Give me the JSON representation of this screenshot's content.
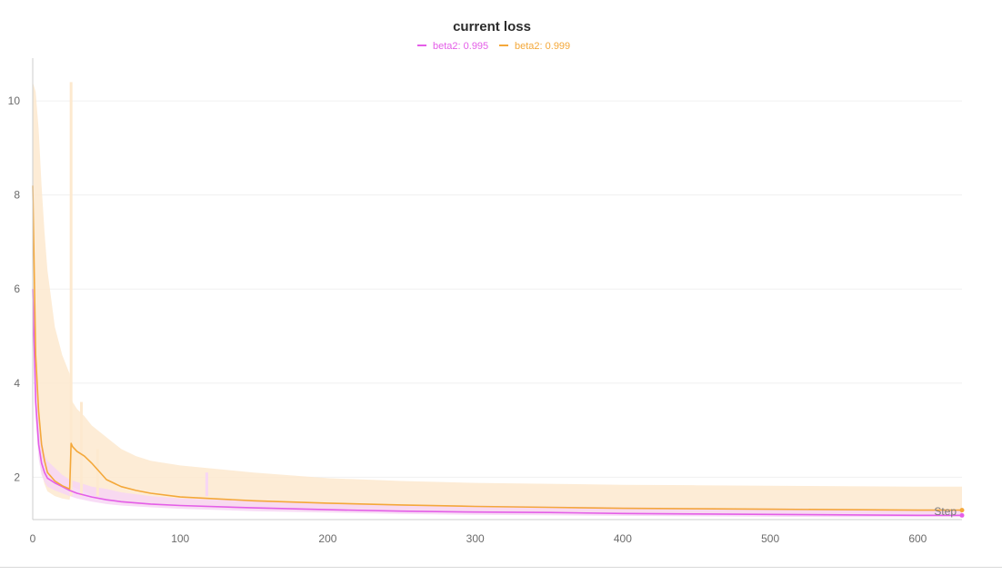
{
  "chart_data": {
    "type": "line",
    "title": "current loss",
    "xlabel": "Step",
    "ylabel": "",
    "xlim": [
      0,
      630
    ],
    "ylim": [
      1.1,
      10.6
    ],
    "x_ticks": [
      0,
      100,
      200,
      300,
      400,
      500,
      600
    ],
    "y_ticks": [
      2,
      4,
      6,
      8,
      10
    ],
    "grid": true,
    "legend_position": "top-center",
    "series": [
      {
        "name": "beta2: 0.995",
        "color": "#e45ee8",
        "band_color": "#f7d6f5",
        "x": [
          0,
          2,
          4,
          6,
          8,
          10,
          15,
          20,
          25,
          30,
          40,
          50,
          60,
          80,
          100,
          150,
          200,
          250,
          300,
          350,
          400,
          450,
          500,
          550,
          600,
          630
        ],
        "mean": [
          6.0,
          3.6,
          2.7,
          2.3,
          2.1,
          1.98,
          1.88,
          1.8,
          1.72,
          1.66,
          1.58,
          1.52,
          1.48,
          1.43,
          1.4,
          1.35,
          1.31,
          1.28,
          1.26,
          1.25,
          1.23,
          1.22,
          1.21,
          1.2,
          1.19,
          1.19
        ],
        "upper": [
          6.5,
          4.2,
          3.3,
          2.8,
          2.5,
          2.35,
          2.2,
          2.05,
          1.95,
          1.9,
          1.8,
          1.75,
          1.68,
          1.6,
          1.55,
          1.5,
          1.46,
          1.42,
          1.4,
          1.38,
          1.36,
          1.35,
          1.34,
          1.33,
          1.32,
          1.32
        ],
        "lower": [
          5.5,
          3.2,
          2.4,
          2.05,
          1.9,
          1.8,
          1.72,
          1.66,
          1.6,
          1.55,
          1.48,
          1.43,
          1.4,
          1.36,
          1.33,
          1.28,
          1.25,
          1.22,
          1.2,
          1.19,
          1.18,
          1.17,
          1.16,
          1.15,
          1.15,
          1.15
        ]
      },
      {
        "name": "beta2: 0.999",
        "color": "#f4a83a",
        "band_color": "#fde9cf",
        "x": [
          0,
          2,
          4,
          6,
          8,
          10,
          15,
          20,
          25,
          26,
          27,
          30,
          35,
          40,
          50,
          60,
          70,
          80,
          100,
          150,
          200,
          250,
          300,
          350,
          400,
          450,
          500,
          550,
          600,
          630
        ],
        "mean": [
          8.2,
          4.6,
          3.4,
          2.7,
          2.35,
          2.1,
          1.92,
          1.82,
          1.75,
          2.72,
          2.65,
          2.55,
          2.45,
          2.3,
          1.95,
          1.8,
          1.72,
          1.66,
          1.58,
          1.5,
          1.45,
          1.41,
          1.38,
          1.36,
          1.34,
          1.33,
          1.32,
          1.31,
          1.3,
          1.3
        ],
        "upper": [
          10.4,
          10.2,
          9.4,
          8.2,
          7.2,
          6.4,
          5.2,
          4.6,
          4.2,
          3.8,
          3.6,
          3.45,
          3.3,
          3.1,
          2.85,
          2.6,
          2.45,
          2.35,
          2.25,
          2.1,
          1.98,
          1.92,
          1.88,
          1.86,
          1.84,
          1.83,
          1.82,
          1.81,
          1.8,
          1.8
        ],
        "lower": [
          5.8,
          3.4,
          2.6,
          2.1,
          1.85,
          1.7,
          1.6,
          1.55,
          1.52,
          1.8,
          1.8,
          1.75,
          1.7,
          1.62,
          1.52,
          1.45,
          1.42,
          1.4,
          1.37,
          1.32,
          1.28,
          1.26,
          1.25,
          1.24,
          1.23,
          1.23,
          1.22,
          1.22,
          1.22,
          1.22
        ]
      }
    ],
    "spikes": [
      {
        "series": 1,
        "x": 26,
        "y": 10.4
      },
      {
        "series": 1,
        "x": 33,
        "y": 3.6
      },
      {
        "series": 1,
        "x": 44,
        "y": 2.6
      },
      {
        "series": 0,
        "x": 118,
        "y": 2.1
      }
    ]
  }
}
